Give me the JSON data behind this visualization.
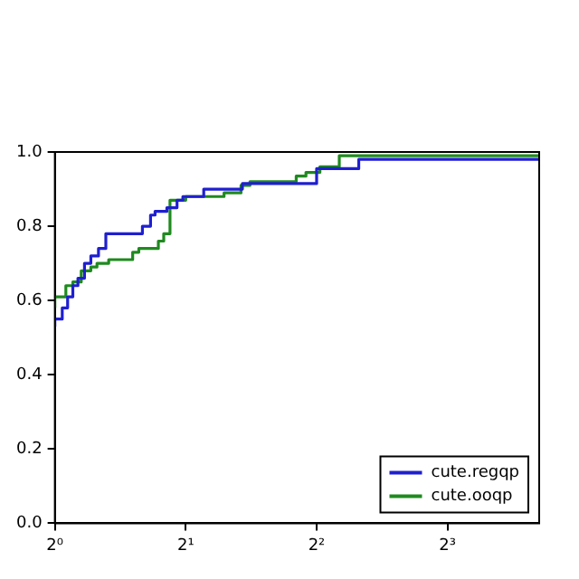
{
  "chart_data": {
    "type": "step",
    "log": "x",
    "xlim": [
      1,
      13
    ],
    "xticks": [
      {
        "value": 1,
        "label": "2⁰"
      },
      {
        "value": 2,
        "label": "2¹"
      },
      {
        "value": 4,
        "label": "2²"
      },
      {
        "value": 8,
        "label": "2³"
      }
    ],
    "ylim": [
      0,
      1
    ],
    "yticks": [
      {
        "value": 0,
        "label": "0.0"
      },
      0.2,
      0.4,
      0.6,
      0.8,
      {
        "value": 1,
        "label": "1.0"
      }
    ],
    "grid": false,
    "legend": "bottom right",
    "line_style": "solid",
    "marker": "none",
    "series": [
      {
        "name": "cute.regqp",
        "color": "#1f1fd0",
        "x": [
          1,
          1.04,
          1.07,
          1.1,
          1.13,
          1.17,
          1.21,
          1.26,
          1.31,
          1.59,
          1.66,
          1.7,
          1.81,
          1.91,
          1.97,
          2.2,
          2.7,
          4.0,
          5.0,
          7.05,
          13
        ],
        "values": [
          0.53,
          0.55,
          0.58,
          0.61,
          0.64,
          0.66,
          0.7,
          0.72,
          0.74,
          0.78,
          0.8,
          0.83,
          0.84,
          0.85,
          0.87,
          0.88,
          0.9,
          0.915,
          0.955,
          0.98,
          0.98
        ]
      },
      {
        "name": "cute.ooqp",
        "color": "#1f8a1f",
        "x": [
          1,
          1.06,
          1.1,
          1.15,
          1.21,
          1.25,
          1.33,
          1.51,
          1.56,
          1.73,
          1.78,
          1.84,
          2.0,
          2.45,
          2.68,
          2.81,
          3.59,
          3.78,
          4.07,
          4.51,
          5.0,
          13
        ],
        "values": [
          0.58,
          0.61,
          0.64,
          0.65,
          0.68,
          0.69,
          0.7,
          0.71,
          0.73,
          0.74,
          0.76,
          0.78,
          0.87,
          0.88,
          0.89,
          0.91,
          0.92,
          0.935,
          0.945,
          0.96,
          0.99,
          0.99
        ]
      }
    ]
  }
}
